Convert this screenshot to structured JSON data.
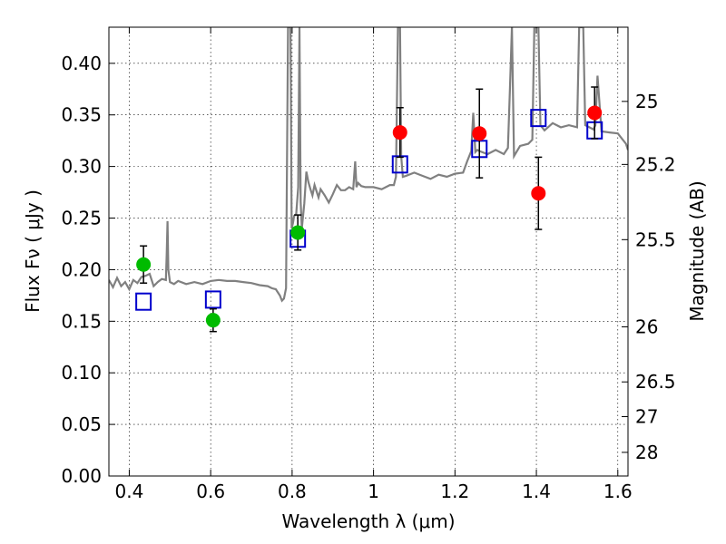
{
  "chart_data": {
    "type": "scatter",
    "xlabel": "Wavelength  λ (μm)",
    "ylabel": "Flux  Fν  ( μJy )",
    "y2label": "Magnitude (AB)",
    "xlim": [
      0.35,
      1.625
    ],
    "ylim": [
      0.0,
      0.435
    ],
    "grid": true,
    "x_ticks": [
      0.4,
      0.6,
      0.8,
      1.0,
      1.2,
      1.4,
      1.6
    ],
    "x_tick_labels": [
      "0.4",
      "0.6",
      "0.8",
      "1",
      "1.2",
      "1.4",
      "1.6"
    ],
    "y_ticks": [
      0.0,
      0.05,
      0.1,
      0.15,
      0.2,
      0.25,
      0.3,
      0.35,
      0.4
    ],
    "y_tick_labels": [
      "0.00",
      "0.05",
      "0.10",
      "0.15",
      "0.20",
      "0.25",
      "0.30",
      "0.35",
      "0.40"
    ],
    "mag_ticks": [
      25,
      25.2,
      25.5,
      26,
      26.5,
      27,
      28
    ],
    "mag_tick_labels": [
      "25",
      "25.2",
      "25.5",
      "26",
      "26.5",
      "27",
      "28"
    ],
    "colors": {
      "spectrum": "#808080",
      "green": "#00bb00",
      "red": "#ff0000",
      "model_box": "#0000cc",
      "errorbar": "#000000"
    },
    "series": [
      {
        "marker": "green-circle",
        "points": [
          {
            "x": 0.435,
            "y": 0.205,
            "err": 0.018
          },
          {
            "x": 0.606,
            "y": 0.151,
            "err": 0.011
          },
          {
            "x": 0.814,
            "y": 0.236,
            "err": 0.017
          }
        ]
      },
      {
        "marker": "red-circle",
        "points": [
          {
            "x": 1.065,
            "y": 0.333,
            "err": 0.024
          },
          {
            "x": 1.26,
            "y": 0.332,
            "err": 0.043
          },
          {
            "x": 1.405,
            "y": 0.274,
            "err": 0.035
          },
          {
            "x": 1.543,
            "y": 0.352,
            "err": 0.025
          }
        ]
      },
      {
        "marker": "blue-square",
        "points": [
          {
            "x": 0.435,
            "y": 0.169
          },
          {
            "x": 0.606,
            "y": 0.171
          },
          {
            "x": 0.814,
            "y": 0.23
          },
          {
            "x": 1.065,
            "y": 0.302
          },
          {
            "x": 1.26,
            "y": 0.317
          },
          {
            "x": 1.405,
            "y": 0.347
          },
          {
            "x": 1.543,
            "y": 0.335
          }
        ]
      }
    ],
    "spectrum": {
      "x": [
        0.35,
        0.36,
        0.37,
        0.38,
        0.39,
        0.4,
        0.41,
        0.42,
        0.43,
        0.44,
        0.45,
        0.46,
        0.47,
        0.48,
        0.49,
        0.492,
        0.494,
        0.496,
        0.5,
        0.51,
        0.52,
        0.54,
        0.56,
        0.58,
        0.6,
        0.62,
        0.64,
        0.66,
        0.68,
        0.7,
        0.72,
        0.74,
        0.75,
        0.76,
        0.77,
        0.775,
        0.78,
        0.785,
        0.79,
        0.793,
        0.796,
        0.799,
        0.802,
        0.805,
        0.81,
        0.815,
        0.818,
        0.821,
        0.824,
        0.83,
        0.835,
        0.84,
        0.845,
        0.85,
        0.855,
        0.86,
        0.865,
        0.87,
        0.88,
        0.89,
        0.9,
        0.91,
        0.92,
        0.93,
        0.94,
        0.95,
        0.955,
        0.958,
        0.962,
        0.97,
        0.98,
        1.0,
        1.02,
        1.04,
        1.05,
        1.055,
        1.06,
        1.063,
        1.065,
        1.068,
        1.072,
        1.08,
        1.1,
        1.12,
        1.14,
        1.16,
        1.18,
        1.2,
        1.22,
        1.23,
        1.24,
        1.245,
        1.25,
        1.255,
        1.26,
        1.28,
        1.3,
        1.32,
        1.33,
        1.335,
        1.34,
        1.345,
        1.36,
        1.38,
        1.39,
        1.395,
        1.4,
        1.402,
        1.405,
        1.41,
        1.42,
        1.44,
        1.46,
        1.48,
        1.5,
        1.505,
        1.51,
        1.515,
        1.52,
        1.53,
        1.54,
        1.545,
        1.55,
        1.56,
        1.58,
        1.6,
        1.62,
        1.625
      ],
      "y": [
        0.19,
        0.183,
        0.192,
        0.184,
        0.188,
        0.181,
        0.19,
        0.187,
        0.193,
        0.194,
        0.196,
        0.184,
        0.188,
        0.191,
        0.19,
        0.215,
        0.247,
        0.2,
        0.188,
        0.186,
        0.189,
        0.186,
        0.188,
        0.186,
        0.189,
        0.19,
        0.189,
        0.189,
        0.188,
        0.187,
        0.185,
        0.184,
        0.182,
        0.181,
        0.175,
        0.17,
        0.172,
        0.182,
        0.435,
        0.435,
        0.435,
        0.24,
        0.245,
        0.252,
        0.254,
        0.28,
        0.435,
        0.266,
        0.24,
        0.264,
        0.295,
        0.285,
        0.278,
        0.272,
        0.282,
        0.276,
        0.27,
        0.278,
        0.272,
        0.265,
        0.273,
        0.282,
        0.277,
        0.277,
        0.28,
        0.278,
        0.305,
        0.28,
        0.284,
        0.281,
        0.28,
        0.28,
        0.278,
        0.282,
        0.282,
        0.29,
        0.435,
        0.435,
        0.435,
        0.31,
        0.29,
        0.291,
        0.294,
        0.291,
        0.288,
        0.292,
        0.29,
        0.293,
        0.294,
        0.305,
        0.315,
        0.352,
        0.314,
        0.316,
        0.315,
        0.312,
        0.316,
        0.312,
        0.318,
        0.375,
        0.435,
        0.31,
        0.32,
        0.322,
        0.326,
        0.435,
        0.435,
        0.435,
        0.435,
        0.34,
        0.335,
        0.342,
        0.338,
        0.34,
        0.338,
        0.435,
        0.435,
        0.435,
        0.34,
        0.338,
        0.336,
        0.34,
        0.388,
        0.334,
        0.333,
        0.332,
        0.322,
        0.316
      ]
    }
  }
}
